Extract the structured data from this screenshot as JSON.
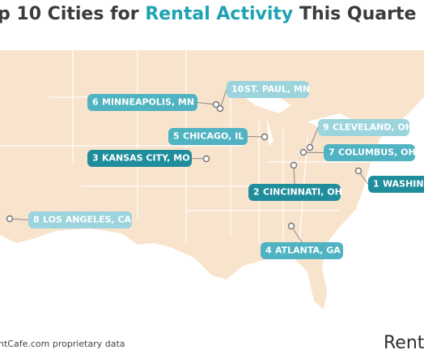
{
  "title": {
    "lead": "p 10 Cities for",
    "accent": "Rental Activity",
    "tail": "This Quarte"
  },
  "labels": [
    {
      "rank": 6,
      "city": "MINNEAPOLIS, MN"
    },
    {
      "rank": 10,
      "city": "ST. PAUL, MN"
    },
    {
      "rank": 5,
      "city": "CHICAGO, IL"
    },
    {
      "rank": 9,
      "city": "CLEVELAND, OH"
    },
    {
      "rank": 3,
      "city": "KANSAS CITY, MO"
    },
    {
      "rank": 7,
      "city": "COLUMBUS, OH"
    },
    {
      "rank": 2,
      "city": "CINCINNATI, OH"
    },
    {
      "rank": 1,
      "city": "WASHING"
    },
    {
      "rank": 8,
      "city": "LOS ANGELES, CA"
    },
    {
      "rank": 4,
      "city": "ATLANTA, GA"
    }
  ],
  "footer": {
    "source": "ntCafe.com proprietary data",
    "brand": "Rent"
  }
}
